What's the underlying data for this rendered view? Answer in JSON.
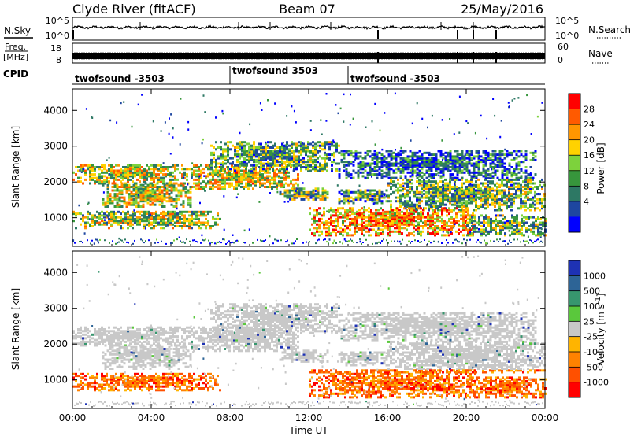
{
  "header": {
    "station": "Clyde River (fitACF)",
    "beam": "Beam 07",
    "date": "25/May/2016"
  },
  "strips": {
    "nsky_label": "N.Sky",
    "nsky_ticks": [
      "10^5",
      "10^0"
    ],
    "nsearch_label": "N.Search",
    "nsearch_ticks": [
      "10^5",
      "10^0"
    ],
    "freq_label_1": "Freq.",
    "freq_label_2": "[MHz]",
    "freq_ticks": [
      "18",
      "8"
    ],
    "nave_label": "Nave",
    "nave_ticks": [
      "60",
      "0"
    ],
    "cpid_label": "CPID",
    "cpid_segments": [
      {
        "label": "twofsound -3503",
        "start_h": 0,
        "end_h": 8
      },
      {
        "label": "twofsound 3503",
        "start_h": 8,
        "end_h": 14
      },
      {
        "label": "twofsound -3503",
        "start_h": 14,
        "end_h": 24
      }
    ]
  },
  "time_axis": {
    "label": "Time UT",
    "ticks": [
      "00:00",
      "04:00",
      "08:00",
      "12:00",
      "16:00",
      "20:00",
      "00:00"
    ],
    "range_hours": [
      0,
      24
    ]
  },
  "chart_data": [
    {
      "type": "heatmap",
      "parameter": "power",
      "ylabel": "Slant Range [km]",
      "yticks": [
        1000,
        2000,
        3000,
        4000
      ],
      "ylim": [
        200,
        4600
      ],
      "xlim": [
        0,
        24
      ],
      "colorbar": {
        "label": "Power [dB]",
        "ticks": [
          "28",
          "24",
          "20",
          "16",
          "12",
          "8",
          "4"
        ],
        "colors": [
          "#ff0000",
          "#ff5a00",
          "#ff9600",
          "#ffd200",
          "#7dd23c",
          "#37963c",
          "#2d7864",
          "#1e46a0",
          "#0000ff"
        ]
      }
    },
    {
      "type": "heatmap",
      "parameter": "velocity",
      "ylabel": "Slant Range [km]",
      "yticks": [
        1000,
        2000,
        3000,
        4000
      ],
      "ylim": [
        200,
        4600
      ],
      "xlim": [
        0,
        24
      ],
      "colorbar": {
        "label": "Velocity [m s-1]",
        "ticks": [
          "1000",
          "500",
          "100",
          "25",
          "-25",
          "-100",
          "-500",
          "-1000"
        ],
        "colors": [
          "#1e32b4",
          "#2d6496",
          "#37966e",
          "#5ac83c",
          "#c8c8c8",
          "#ffb400",
          "#ff8200",
          "#ff5000",
          "#ff0000"
        ]
      }
    }
  ]
}
